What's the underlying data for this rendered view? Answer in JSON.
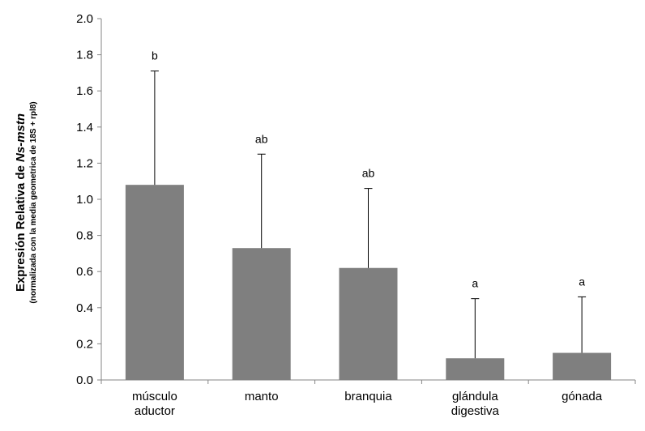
{
  "chart_data": {
    "type": "bar",
    "title": "",
    "xlabel": "",
    "ylabel": {
      "prefix": "Expresión Relativa de ",
      "gene": "Ns-mstn",
      "sub": "(normalizada con la media geometrica de  18S + rpl8)"
    },
    "categories": [
      [
        "músculo",
        "aductor"
      ],
      [
        "manto"
      ],
      [
        "branquia"
      ],
      [
        "glándula",
        "digestiva"
      ],
      [
        "gónada"
      ]
    ],
    "values": [
      1.08,
      0.73,
      0.62,
      0.12,
      0.15
    ],
    "error_upper": [
      1.71,
      1.25,
      1.06,
      0.45,
      0.46
    ],
    "significance": [
      "b",
      "ab",
      "ab",
      "a",
      "a"
    ],
    "ylim": [
      0.0,
      2.0
    ],
    "yticks": [
      "0.0",
      "0.2",
      "0.4",
      "0.6",
      "0.8",
      "1.0",
      "1.2",
      "1.4",
      "1.6",
      "1.8",
      "2.0"
    ],
    "grid": false,
    "colors": {
      "bar": "#7f7f7f",
      "axis": "#868686",
      "error": "#000000"
    }
  }
}
